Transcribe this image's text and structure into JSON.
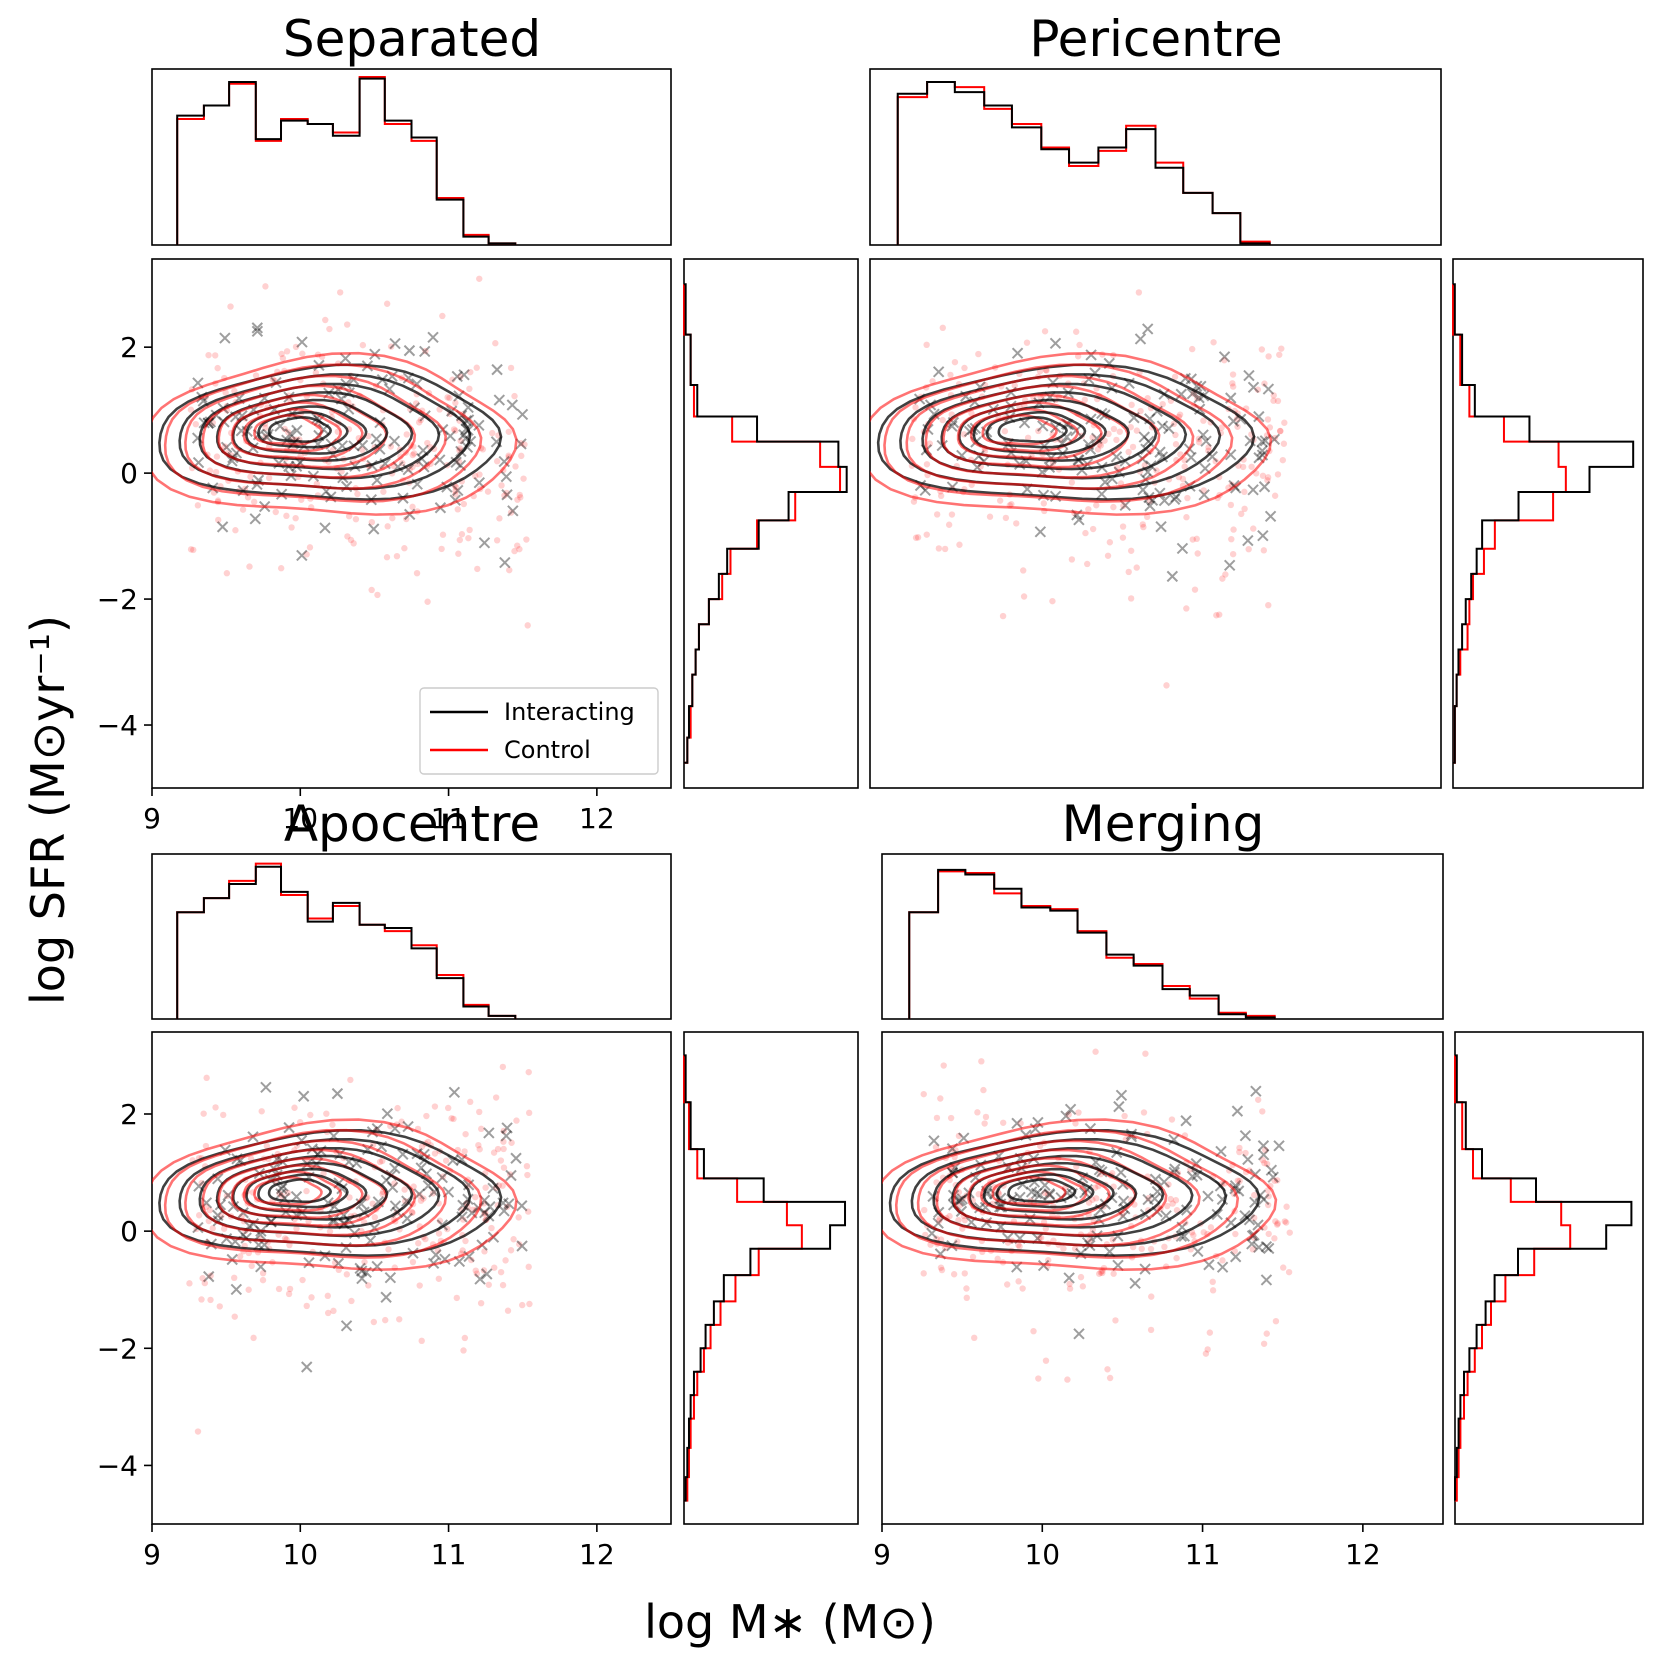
{
  "figure": {
    "xlabel": "log M∗ (M⊙)",
    "ylabel": "log SFR (M⊙yr⁻¹)"
  },
  "legend": {
    "interacting": "Interacting",
    "control": "Control"
  },
  "colors": {
    "interacting": "#000000",
    "control": "#ff0000"
  },
  "chart_data": [
    {
      "type": "scatter",
      "title": "Separated",
      "xlim": [
        9,
        12.5
      ],
      "ylim": [
        -5,
        3.4
      ],
      "xticks": [
        9,
        10,
        11,
        12
      ],
      "yticks": [
        2,
        0,
        -2,
        -4
      ],
      "legend_placement": "lower-right",
      "mass_hist": {
        "edges": [
          9.17,
          9.35,
          9.52,
          9.7,
          9.87,
          10.05,
          10.22,
          10.4,
          10.57,
          10.75,
          10.92,
          11.1,
          11.27,
          11.45
        ],
        "interacting": [
          0.77,
          0.83,
          0.97,
          0.63,
          0.74,
          0.72,
          0.65,
          0.99,
          0.74,
          0.64,
          0.27,
          0.05,
          0.01
        ],
        "control": [
          0.75,
          0.83,
          0.96,
          0.62,
          0.75,
          0.72,
          0.67,
          1.0,
          0.72,
          0.62,
          0.28,
          0.06,
          0.01
        ]
      },
      "sfr_hist": {
        "edges": [
          3.0,
          2.2,
          1.4,
          0.9,
          0.5,
          0.1,
          -0.3,
          -0.75,
          -1.2,
          -1.6,
          -2.0,
          -2.4,
          -2.8,
          -3.2,
          -3.7,
          -4.2,
          -4.6
        ],
        "interacting": [
          0.01,
          0.04,
          0.08,
          0.44,
          0.93,
          0.98,
          0.63,
          0.45,
          0.26,
          0.21,
          0.15,
          0.09,
          0.07,
          0.05,
          0.03,
          0.02
        ],
        "control": [
          0.0,
          0.04,
          0.06,
          0.29,
          0.82,
          0.94,
          0.67,
          0.44,
          0.28,
          0.23,
          0.15,
          0.09,
          0.07,
          0.05,
          0.04,
          0.02
        ]
      }
    },
    {
      "type": "scatter",
      "title": "Pericentre",
      "xlim": [
        9,
        12.5
      ],
      "ylim": [
        -5,
        3.4
      ],
      "xticks": [],
      "yticks": [],
      "mass_hist": {
        "edges": [
          9.17,
          9.35,
          9.52,
          9.7,
          9.87,
          10.05,
          10.22,
          10.4,
          10.57,
          10.75,
          10.92,
          11.1,
          11.27,
          11.45
        ],
        "interacting": [
          0.9,
          0.97,
          0.91,
          0.83,
          0.7,
          0.57,
          0.49,
          0.58,
          0.69,
          0.46,
          0.31,
          0.19,
          0.01
        ],
        "control": [
          0.88,
          0.97,
          0.94,
          0.81,
          0.72,
          0.58,
          0.47,
          0.56,
          0.71,
          0.49,
          0.31,
          0.19,
          0.02
        ]
      },
      "sfr_hist": {
        "edges": [
          3.0,
          2.2,
          1.4,
          0.9,
          0.5,
          0.1,
          -0.3,
          -0.75,
          -1.2,
          -1.6,
          -2.0,
          -2.4,
          -2.8,
          -3.2,
          -3.7,
          -4.2,
          -4.6
        ],
        "interacting": [
          0.01,
          0.05,
          0.12,
          0.42,
          0.99,
          0.75,
          0.36,
          0.16,
          0.13,
          0.1,
          0.07,
          0.05,
          0.03,
          0.02,
          0.01,
          0.01
        ],
        "control": [
          0.0,
          0.04,
          0.09,
          0.28,
          0.58,
          0.62,
          0.55,
          0.23,
          0.17,
          0.11,
          0.09,
          0.08,
          0.04,
          0.02,
          0.01,
          0.01
        ]
      }
    },
    {
      "type": "scatter",
      "title": "Apocentre",
      "xlim": [
        9,
        12.5
      ],
      "ylim": [
        -5,
        3.4
      ],
      "xticks": [
        9,
        10,
        11,
        12
      ],
      "yticks": [
        2,
        0,
        -2,
        -4
      ],
      "mass_hist": {
        "edges": [
          9.17,
          9.35,
          9.52,
          9.7,
          9.87,
          10.05,
          10.22,
          10.4,
          10.57,
          10.75,
          10.92,
          11.1,
          11.27,
          11.45
        ],
        "interacting": [
          0.68,
          0.77,
          0.86,
          0.97,
          0.81,
          0.62,
          0.74,
          0.6,
          0.58,
          0.45,
          0.26,
          0.08,
          0.02
        ],
        "control": [
          0.68,
          0.77,
          0.88,
          0.99,
          0.79,
          0.64,
          0.72,
          0.6,
          0.56,
          0.47,
          0.28,
          0.09,
          0.02
        ]
      },
      "sfr_hist": {
        "edges": [
          3.0,
          2.2,
          1.4,
          0.9,
          0.5,
          0.1,
          -0.3,
          -0.75,
          -1.2,
          -1.6,
          -2.0,
          -2.4,
          -2.8,
          -3.2,
          -3.7,
          -4.2,
          -4.6
        ],
        "interacting": [
          0.01,
          0.04,
          0.12,
          0.48,
          0.97,
          0.88,
          0.4,
          0.24,
          0.18,
          0.13,
          0.1,
          0.06,
          0.04,
          0.03,
          0.02,
          0.01
        ],
        "control": [
          0.0,
          0.03,
          0.08,
          0.32,
          0.62,
          0.71,
          0.45,
          0.31,
          0.22,
          0.16,
          0.12,
          0.08,
          0.06,
          0.04,
          0.03,
          0.02
        ]
      }
    },
    {
      "type": "scatter",
      "title": "Merging",
      "xlim": [
        9,
        12.5
      ],
      "ylim": [
        -5,
        3.4
      ],
      "xticks": [
        9,
        10,
        11,
        12
      ],
      "yticks": [],
      "mass_hist": {
        "edges": [
          9.17,
          9.35,
          9.52,
          9.7,
          9.87,
          10.05,
          10.22,
          10.4,
          10.57,
          10.75,
          10.92,
          11.1,
          11.27,
          11.45
        ],
        "interacting": [
          0.68,
          0.95,
          0.92,
          0.83,
          0.71,
          0.69,
          0.55,
          0.41,
          0.34,
          0.19,
          0.15,
          0.03,
          0.01
        ],
        "control": [
          0.68,
          0.94,
          0.93,
          0.8,
          0.72,
          0.7,
          0.56,
          0.39,
          0.35,
          0.21,
          0.13,
          0.04,
          0.02
        ]
      },
      "sfr_hist": {
        "edges": [
          3.0,
          2.2,
          1.4,
          0.9,
          0.5,
          0.1,
          -0.3,
          -0.75,
          -1.2,
          -1.6,
          -2.0,
          -2.4,
          -2.8,
          -3.2,
          -3.7,
          -4.2,
          -4.6
        ],
        "interacting": [
          0.01,
          0.06,
          0.15,
          0.45,
          0.98,
          0.84,
          0.35,
          0.22,
          0.17,
          0.12,
          0.08,
          0.05,
          0.03,
          0.02,
          0.01,
          0.0
        ],
        "control": [
          0.0,
          0.04,
          0.1,
          0.31,
          0.59,
          0.64,
          0.44,
          0.28,
          0.2,
          0.15,
          0.11,
          0.07,
          0.05,
          0.03,
          0.02,
          0.01
        ]
      }
    }
  ]
}
